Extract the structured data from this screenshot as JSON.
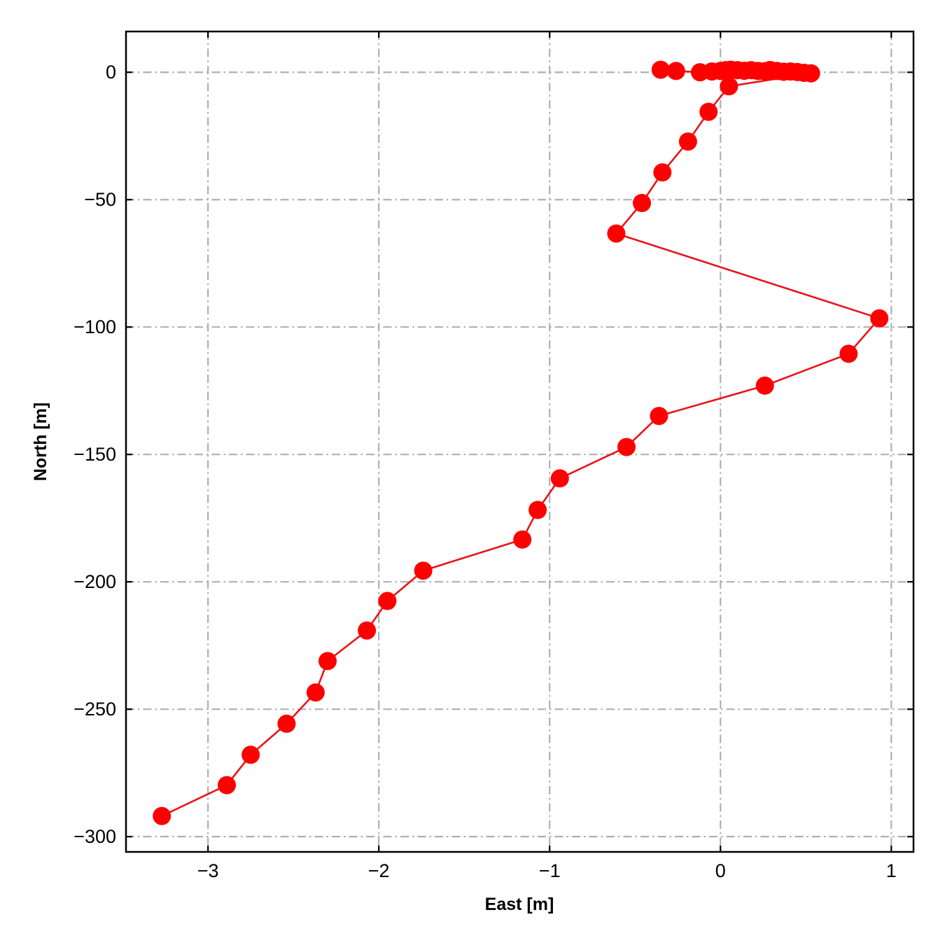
{
  "chart_data": {
    "type": "line",
    "title": "",
    "xlabel": "East [m]",
    "ylabel": "North [m]",
    "xlim": [
      -3.48,
      1.13
    ],
    "ylim": [
      -306,
      16
    ],
    "xticks": [
      -3,
      -2,
      -1,
      0,
      1
    ],
    "xtick_labels": [
      "−3",
      "−2",
      "−1",
      "0",
      "1"
    ],
    "yticks": [
      0,
      -50,
      -100,
      -150,
      -200,
      -250,
      -300
    ],
    "ytick_labels": [
      "0",
      "−50",
      "−100",
      "−150",
      "−200",
      "−250",
      "−300"
    ],
    "grid": true,
    "grid_style": "dashdot",
    "legend": "none",
    "colors": {
      "series": "#ff0000",
      "line": "#e8141a",
      "grid": "#b0b0b0",
      "frame": "#000000"
    },
    "series": [
      {
        "marker": "circle",
        "points": [
          [
            -0.35,
            1.0
          ],
          [
            -0.26,
            0.5
          ],
          [
            -0.12,
            0.0
          ],
          [
            -0.05,
            0.3
          ],
          [
            0.0,
            0.5
          ],
          [
            0.03,
            0.8
          ],
          [
            0.06,
            1.0
          ],
          [
            0.1,
            0.8
          ],
          [
            0.14,
            0.6
          ],
          [
            0.18,
            0.8
          ],
          [
            0.22,
            0.5
          ],
          [
            0.26,
            0.4
          ],
          [
            0.29,
            0.9
          ],
          [
            0.33,
            0.5
          ],
          [
            0.37,
            0.2
          ],
          [
            0.41,
            0.3
          ],
          [
            0.45,
            0.1
          ],
          [
            0.49,
            -0.2
          ],
          [
            0.53,
            -0.4
          ],
          [
            0.05,
            -5.5
          ],
          [
            -0.07,
            -15.5
          ],
          [
            -0.19,
            -27.2
          ],
          [
            -0.34,
            -39.3
          ],
          [
            -0.46,
            -51.3
          ],
          [
            -0.61,
            -63.3
          ],
          [
            0.93,
            -96.6
          ],
          [
            0.75,
            -110.5
          ],
          [
            0.26,
            -123.0
          ],
          [
            -0.36,
            -134.9
          ],
          [
            -0.55,
            -147.1
          ],
          [
            -0.94,
            -159.4
          ],
          [
            -1.07,
            -171.8
          ],
          [
            -1.16,
            -183.4
          ],
          [
            -1.74,
            -195.6
          ],
          [
            -1.95,
            -207.5
          ],
          [
            -2.07,
            -219.1
          ],
          [
            -2.3,
            -231.1
          ],
          [
            -2.37,
            -243.4
          ],
          [
            -2.54,
            -255.7
          ],
          [
            -2.75,
            -267.9
          ],
          [
            -2.89,
            -279.8
          ],
          [
            -3.27,
            -291.9
          ]
        ]
      }
    ]
  }
}
